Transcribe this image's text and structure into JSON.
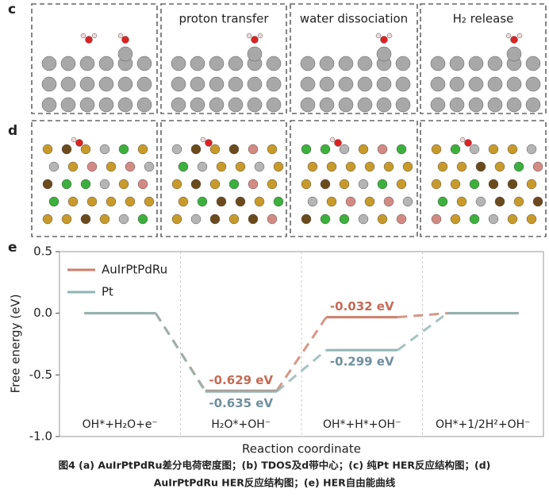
{
  "panels": {
    "c": "c",
    "d": "d",
    "e": "e"
  },
  "structure_headers": [
    "proton transfer",
    "water dissociation",
    "H₂ release"
  ],
  "caption": [
    "图4 (a) AuIrPtPdRu差分电荷密度图；(b) TDOS及d带中心；(c) 纯Pt HER反应结构图；(d)",
    "AuIrPtPdRu HER反应结构图；(e) HER自由能曲线"
  ],
  "chart_data": {
    "type": "energy_profile",
    "x_label": "Reaction coordinate",
    "y_label": "Free energy (eV)",
    "categories": [
      "OH*+H₂O+e⁻",
      "H₂O*+OH⁻",
      "OH*+H*+OH⁻",
      "OH*+1/2H²+OH⁻"
    ],
    "series": [
      {
        "name": "AuIrPtPdRu",
        "color": "#cd7e6a",
        "values": [
          0,
          -0.629,
          -0.032,
          0
        ],
        "value_labels": [
          null,
          "-0.629 eV",
          "-0.032 eV",
          null
        ]
      },
      {
        "name": "Pt",
        "color": "#8fb5b3",
        "values": [
          0,
          -0.635,
          -0.299,
          0
        ],
        "value_labels": [
          null,
          "-0.635 eV",
          "-0.299 eV",
          null
        ]
      }
    ],
    "ylim": [
      -1.0,
      0.5
    ],
    "yticks": [
      {
        "value": -1.0,
        "label": "-1.0"
      },
      -0.5,
      {
        "value": 0,
        "label": "0.0"
      },
      0.5
    ],
    "legend": "upper-left"
  }
}
